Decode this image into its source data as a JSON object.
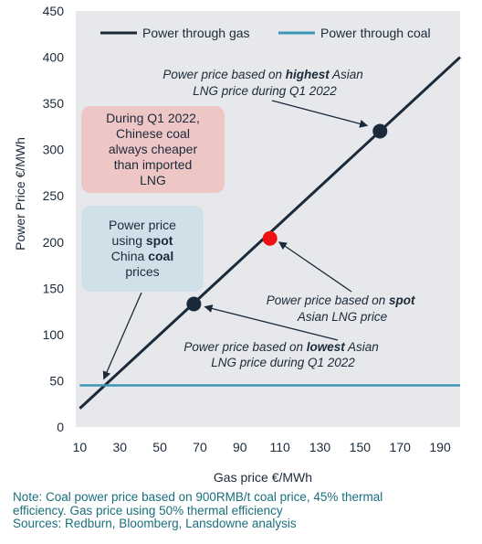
{
  "chart_data": {
    "type": "line",
    "xlabel": "Gas price €/MWh",
    "ylabel": "Power Price €/MWh",
    "xlim": [
      8,
      200
    ],
    "ylim": [
      0,
      450
    ],
    "x_ticks": [
      10,
      30,
      50,
      70,
      90,
      110,
      130,
      150,
      170,
      190
    ],
    "y_ticks": [
      0,
      50,
      100,
      150,
      200,
      250,
      300,
      350,
      400,
      450
    ],
    "grid": false,
    "legend_position": "top",
    "series": [
      {
        "name": "Power through gas",
        "color": "#1b2a3a",
        "x": [
          10,
          200
        ],
        "y": [
          20,
          400
        ]
      },
      {
        "name": "Power through coal",
        "color": "#3b95b8",
        "x": [
          10,
          200
        ],
        "y": [
          45,
          45
        ]
      }
    ],
    "points": [
      {
        "label_lines": [
          "Power price based on ",
          "lowest",
          " Asian",
          "LNG price during Q1 2022"
        ],
        "x": 67,
        "y": 133,
        "color": "#1b2a3a"
      },
      {
        "label_lines": [
          "Power price based on ",
          "spot",
          "Asian LNG price"
        ],
        "x": 105,
        "y": 204,
        "color": "#ee1111"
      },
      {
        "label_lines": [
          "Power price based on ",
          "highest",
          " Asian",
          "LNG price during Q1 2022"
        ],
        "x": 160,
        "y": 320,
        "color": "#1b2a3a"
      }
    ],
    "callouts": {
      "coal_cheaper": [
        "During Q1 2022,",
        "Chinese coal",
        "always cheaper",
        "than imported",
        "LNG"
      ],
      "spot_coal": {
        "line1": "Power price",
        "line2_pre": "using ",
        "line2_bold": "spot",
        "line3_pre": "China ",
        "line3_bold": "coal",
        "line4": "prices"
      }
    }
  },
  "annotations": {
    "highest": {
      "pre": "Power price based on ",
      "bold": "highest",
      "post": " Asian",
      "line2": "LNG price during Q1 2022"
    },
    "spot": {
      "pre": "Power price based on ",
      "bold": "spot",
      "line2": "Asian LNG price"
    },
    "lowest": {
      "pre": "Power price based on ",
      "bold": "lowest",
      "post": " Asian",
      "line2": "LNG price during Q1 2022"
    }
  },
  "notes": [
    "Note: Coal power price based on 900RMB/t coal price, 45% thermal",
    "efficiency. Gas price using 50% thermal efficiency",
    "Sources: Redburn, Bloomberg, Lansdowne analysis"
  ]
}
